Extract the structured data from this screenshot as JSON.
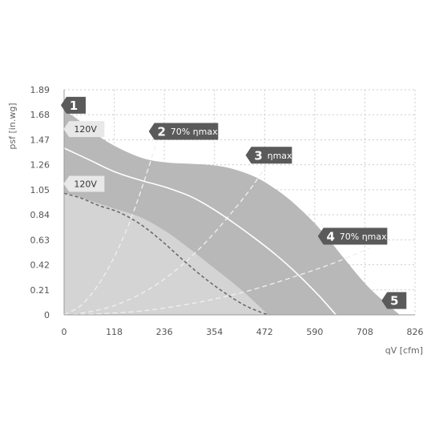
{
  "chart_data": {
    "type": "area",
    "xlabel": "qV [cfm]",
    "ylabel": "psf [in.wg]",
    "xlim": [
      0,
      826
    ],
    "ylim": [
      0,
      1.89
    ],
    "x_ticks": [
      "0",
      "118",
      "236",
      "354",
      "472",
      "590",
      "708",
      "826"
    ],
    "y_ticks": [
      "0",
      "0.21",
      "0.42",
      "0.63",
      "0.84",
      "1.05",
      "1.26",
      "1.47",
      "1.68",
      "1.89"
    ],
    "grid": true,
    "colors": {
      "outer_area": "#b8b8b8",
      "inner_area": "#d4d4d4",
      "curve_line": "#ffffff",
      "dashed_line": "#666666",
      "efficiency_line": "#f0f0f0",
      "tag_fill": "#5a5a5a",
      "voltage_tag_fill": "#e8e8e8"
    },
    "envelope": {
      "x": [
        0,
        40,
        90,
        140,
        190,
        240,
        290,
        340,
        380,
        420,
        460,
        500,
        530,
        570,
        610,
        660,
        720,
        790
      ],
      "y": [
        1.72,
        1.62,
        1.48,
        1.38,
        1.31,
        1.28,
        1.27,
        1.26,
        1.24,
        1.2,
        1.14,
        1.05,
        0.97,
        0.84,
        0.69,
        0.47,
        0.22,
        0.0
      ]
    },
    "inner_region": {
      "x": [
        0,
        20,
        60,
        120,
        180,
        240,
        290,
        340,
        390,
        430,
        460,
        480
      ],
      "y": [
        1.02,
        1.01,
        0.96,
        0.89,
        0.82,
        0.7,
        0.57,
        0.43,
        0.29,
        0.17,
        0.07,
        0.0
      ]
    },
    "series": [
      {
        "name": "120V",
        "style": "solid",
        "x": [
          0,
          60,
          120,
          180,
          240,
          300,
          350,
          400,
          450,
          500,
          550,
          600,
          640
        ],
        "y": [
          1.4,
          1.3,
          1.2,
          1.13,
          1.07,
          0.99,
          0.89,
          0.77,
          0.64,
          0.5,
          0.34,
          0.16,
          0.0
        ]
      },
      {
        "name": "120V",
        "style": "dashed",
        "x": [
          0,
          40,
          80,
          130,
          180,
          230,
          280,
          330,
          380,
          420,
          450,
          480
        ],
        "y": [
          1.02,
          0.98,
          0.92,
          0.86,
          0.76,
          0.62,
          0.46,
          0.31,
          0.18,
          0.09,
          0.04,
          0.0
        ]
      }
    ],
    "efficiency_lines": [
      {
        "x": [
          0,
          40,
          80,
          120,
          160,
          200,
          220
        ],
        "y": [
          0,
          0.08,
          0.25,
          0.5,
          0.83,
          1.25,
          1.48
        ]
      },
      {
        "x": [
          20,
          120,
          220,
          320,
          420,
          480
        ],
        "y": [
          0,
          0.08,
          0.26,
          0.56,
          0.97,
          1.27
        ]
      },
      {
        "x": [
          20,
          200,
          400,
          600,
          720
        ],
        "y": [
          0,
          0.04,
          0.17,
          0.39,
          0.56
        ]
      }
    ],
    "markers": [
      {
        "num": "1",
        "label": "",
        "x": 15,
        "y": 1.76
      },
      {
        "num": "2",
        "label": "70% ηmax",
        "x": 222,
        "y": 1.54
      },
      {
        "num": "3",
        "label": "ηmax",
        "x": 450,
        "y": 1.34
      },
      {
        "num": "4",
        "label": "70% ηmax",
        "x": 620,
        "y": 0.66
      },
      {
        "num": "5",
        "label": "",
        "x": 770,
        "y": 0.12
      }
    ],
    "voltage_labels": [
      {
        "text": "120V",
        "x": 12,
        "y": 1.56
      },
      {
        "text": "120V",
        "x": 12,
        "y": 1.1
      }
    ]
  }
}
